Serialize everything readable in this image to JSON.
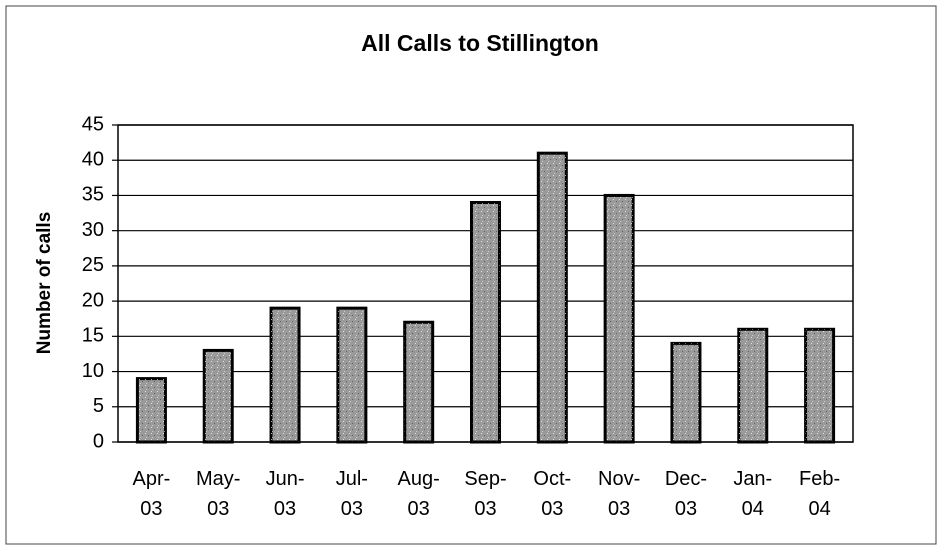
{
  "chart_data": {
    "type": "bar",
    "title": "All Calls to Stillington",
    "y_label": "Number of calls",
    "categories": [
      "Apr-03",
      "May-03",
      "Jun-03",
      "Jul-03",
      "Aug-03",
      "Sep-03",
      "Oct-03",
      "Nov-03",
      "Dec-03",
      "Jan-04",
      "Feb-04"
    ],
    "values": [
      9,
      13,
      19,
      19,
      17,
      34,
      41,
      35,
      14,
      16,
      16
    ],
    "color": "#9a9a9a",
    "ylim": [
      0,
      45
    ],
    "yticks": [
      0,
      5,
      10,
      15,
      20,
      25,
      30,
      35,
      40,
      45
    ],
    "grid": true
  }
}
